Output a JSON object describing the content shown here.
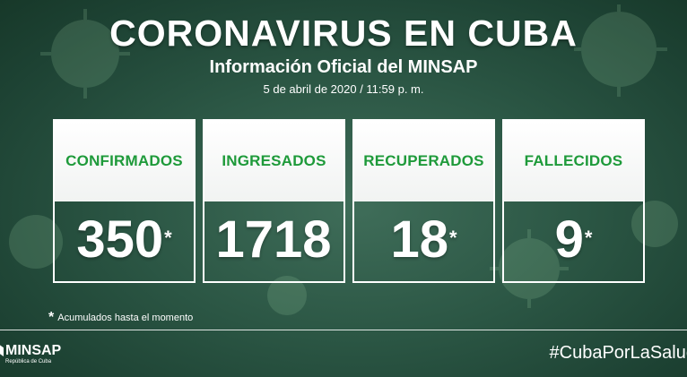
{
  "header": {
    "title": "CORONAVIRUS EN CUBA",
    "subtitle": "Información Oficial del MINSAP",
    "date": "5 de abril de 2020 / 11:59 p. m."
  },
  "stats": [
    {
      "label": "CONFIRMADOS",
      "value": "350",
      "star": "*"
    },
    {
      "label": "INGRESADOS",
      "value": "1718",
      "star": ""
    },
    {
      "label": "RECUPERADOS",
      "value": "18",
      "star": "*"
    },
    {
      "label": "FALLECIDOS",
      "value": "9",
      "star": "*"
    }
  ],
  "footnote": {
    "asterisk": "*",
    "text": "Acumulados hasta el momento"
  },
  "footer": {
    "logo_name": "MINSAP",
    "logo_sub": "República de Cuba",
    "hashtag": "#CubaPorLaSalud"
  },
  "colors": {
    "label_green": "#1e9a3a",
    "background": "#2b5644"
  }
}
